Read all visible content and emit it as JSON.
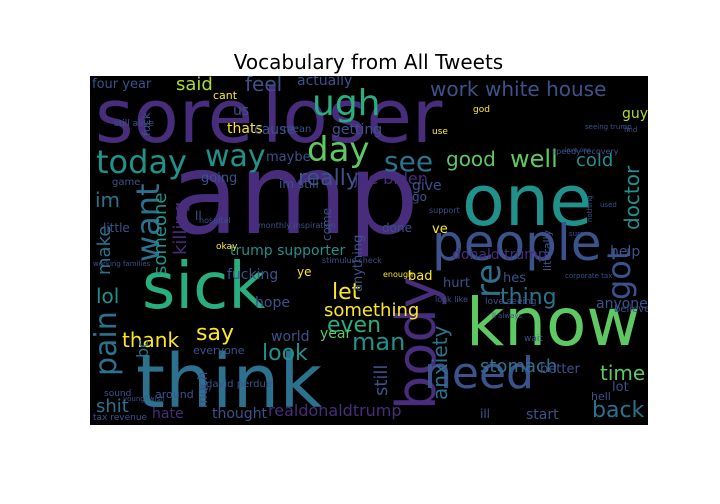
{
  "title": "Vocabulary from All Tweets",
  "palette": {
    "background": "#000000",
    "dark_purple": "#44075a",
    "purple": "#472d7b",
    "indigo": "#3b528b",
    "blue": "#2c728e",
    "teal": "#21918c",
    "green_teal": "#28ae80",
    "green": "#5ec962",
    "lime": "#addc30",
    "yellow": "#fde725"
  },
  "words": [
    {
      "text": "amp",
      "color": "#472d7b"
    },
    {
      "text": "sore",
      "color": "#472d7b"
    },
    {
      "text": "loser",
      "color": "#472d7b"
    },
    {
      "text": "one",
      "color": "#21918c"
    },
    {
      "text": "know",
      "color": "#5ec962"
    },
    {
      "text": "think",
      "color": "#2c728e"
    },
    {
      "text": "sick",
      "color": "#28ae80"
    },
    {
      "text": "people",
      "color": "#3b528b"
    },
    {
      "text": "body",
      "color": "#472d7b"
    },
    {
      "text": "need",
      "color": "#3b528b"
    },
    {
      "text": "ugh",
      "color": "#28ae80"
    },
    {
      "text": "today",
      "color": "#21918c"
    },
    {
      "text": "day",
      "color": "#5ec962"
    },
    {
      "text": "way",
      "color": "#21918c"
    },
    {
      "text": "want",
      "color": "#2c728e"
    },
    {
      "text": "got",
      "color": "#3b528b"
    },
    {
      "text": "see",
      "color": "#2c728e"
    },
    {
      "text": "pain",
      "color": "#2c728e"
    },
    {
      "text": "work",
      "color": "#3b528b"
    },
    {
      "text": "white house",
      "color": "#3b528b"
    },
    {
      "text": "feel",
      "color": "#3b528b"
    },
    {
      "text": "said",
      "color": "#addc30"
    },
    {
      "text": "good",
      "color": "#5ec962"
    },
    {
      "text": "well",
      "color": "#5ec962"
    },
    {
      "text": "cold",
      "color": "#21918c"
    },
    {
      "text": "really",
      "color": "#3b528b"
    },
    {
      "text": "doctor",
      "color": "#21918c"
    },
    {
      "text": "re",
      "color": "#2c728e"
    },
    {
      "text": "thing",
      "color": "#2c728e"
    },
    {
      "text": "lol",
      "color": "#21918c"
    },
    {
      "text": "make",
      "color": "#2c728e"
    },
    {
      "text": "someone",
      "color": "#21918c"
    },
    {
      "text": "killing",
      "color": "#472d7b"
    },
    {
      "text": "im",
      "color": "#2c728e"
    },
    {
      "text": "thank",
      "color": "#fde725"
    },
    {
      "text": "say",
      "color": "#fde725"
    },
    {
      "text": "let",
      "color": "#fde725"
    },
    {
      "text": "something",
      "color": "#fde725"
    },
    {
      "text": "even",
      "color": "#28ae80"
    },
    {
      "text": "man",
      "color": "#21918c"
    },
    {
      "text": "look",
      "color": "#21918c"
    },
    {
      "text": "anxiety",
      "color": "#2c728e"
    },
    {
      "text": "stomach",
      "color": "#2c728e"
    },
    {
      "text": "still",
      "color": "#3b528b"
    },
    {
      "text": "time",
      "color": "#5ec962"
    },
    {
      "text": "back",
      "color": "#2c728e"
    },
    {
      "text": "shit",
      "color": "#2c728e"
    },
    {
      "text": "hate",
      "color": "#472d7b"
    },
    {
      "text": "thought",
      "color": "#3b528b"
    },
    {
      "text": "realdonaldtrump",
      "color": "#472d7b"
    },
    {
      "text": "joe biden",
      "color": "#472d7b"
    },
    {
      "text": "trump supporter",
      "color": "#21918c"
    },
    {
      "text": "donald trump",
      "color": "#472d7b"
    },
    {
      "text": "fucking",
      "color": "#3b528b"
    },
    {
      "text": "hope",
      "color": "#3b528b"
    },
    {
      "text": "world",
      "color": "#3b528b"
    },
    {
      "text": "year",
      "color": "#5ec962"
    },
    {
      "text": "bc",
      "color": "#2c728e"
    },
    {
      "text": "four year",
      "color": "#3b528b"
    },
    {
      "text": "actually",
      "color": "#3b528b"
    },
    {
      "text": "us",
      "color": "#3b528b"
    },
    {
      "text": "cant",
      "color": "#fde725"
    },
    {
      "text": "thats",
      "color": "#fde725"
    },
    {
      "text": "cause",
      "color": "#3b528b"
    },
    {
      "text": "getting",
      "color": "#3b528b"
    },
    {
      "text": "maybe",
      "color": "#3b528b"
    },
    {
      "text": "going",
      "color": "#3b528b"
    },
    {
      "text": "im still",
      "color": "#3b528b"
    },
    {
      "text": "give",
      "color": "#3b528b"
    },
    {
      "text": "go",
      "color": "#3b528b"
    },
    {
      "text": "ve",
      "color": "#fde725"
    },
    {
      "text": "bad",
      "color": "#fde725"
    },
    {
      "text": "hurt",
      "color": "#3b528b"
    },
    {
      "text": "hes",
      "color": "#3b528b"
    },
    {
      "text": "anyone",
      "color": "#3b528b"
    },
    {
      "text": "better",
      "color": "#3b528b"
    },
    {
      "text": "lot",
      "color": "#3b528b"
    },
    {
      "text": "hell",
      "color": "#3b528b"
    },
    {
      "text": "start",
      "color": "#3b528b"
    },
    {
      "text": "much",
      "color": "#3b528b"
    },
    {
      "text": "help",
      "color": "#3b528b"
    },
    {
      "text": "guy",
      "color": "#addc30"
    },
    {
      "text": "fuck",
      "color": "#3b528b"
    },
    {
      "text": "little",
      "color": "#3b528b"
    },
    {
      "text": "done",
      "color": "#3b528b"
    },
    {
      "text": "anything",
      "color": "#3b528b"
    },
    {
      "text": "come",
      "color": "#3b528b"
    },
    {
      "text": "ye",
      "color": "#fde725"
    },
    {
      "text": "literally",
      "color": "#3b528b"
    },
    {
      "text": "love seeing",
      "color": "#3b528b"
    },
    {
      "text": "around",
      "color": "#3b528b"
    },
    {
      "text": "everyone",
      "color": "#3b528b"
    },
    {
      "text": "david perdue",
      "color": "#3b528b"
    },
    {
      "text": "ll",
      "color": "#3b528b"
    },
    {
      "text": "ill",
      "color": "#3b528b"
    },
    {
      "text": "sound",
      "color": "#3b528b"
    },
    {
      "text": "game",
      "color": "#3b528b"
    },
    {
      "text": "mean",
      "color": "#3b528b"
    },
    {
      "text": "believe",
      "color": "#3b528b"
    },
    {
      "text": "wait",
      "color": "#3b528b"
    },
    {
      "text": "okay",
      "color": "#fde725"
    },
    {
      "text": "tax revenue",
      "color": "#3b528b"
    },
    {
      "text": "still alive",
      "color": "#3b528b"
    },
    {
      "text": "working families",
      "color": "#3b528b"
    },
    {
      "text": "youngi wish",
      "color": "#3b528b"
    },
    {
      "text": "monthly inspiration",
      "color": "#3b528b"
    },
    {
      "text": "stimulus check",
      "color": "#3b528b"
    },
    {
      "text": "speedy recovery",
      "color": "#3b528b"
    },
    {
      "text": "seeing trump",
      "color": "#3b528b"
    },
    {
      "text": "use",
      "color": "#fde725"
    },
    {
      "text": "god",
      "color": "#fde725"
    },
    {
      "text": "love one",
      "color": "#3b528b"
    },
    {
      "text": "support",
      "color": "#3b528b"
    },
    {
      "text": "hospital",
      "color": "#3b528b"
    },
    {
      "text": "find",
      "color": "#3b528b"
    },
    {
      "text": "nothing",
      "color": "#3b528b"
    },
    {
      "text": "used",
      "color": "#3b528b"
    },
    {
      "text": "enough",
      "color": "#fde725"
    },
    {
      "text": "look like",
      "color": "#3b528b"
    },
    {
      "text": "ll always",
      "color": "#3b528b"
    },
    {
      "text": "corporate tax",
      "color": "#3b528b"
    },
    {
      "text": "sure",
      "color": "#3b528b"
    },
    {
      "text": "play",
      "color": "#3b528b"
    }
  ]
}
